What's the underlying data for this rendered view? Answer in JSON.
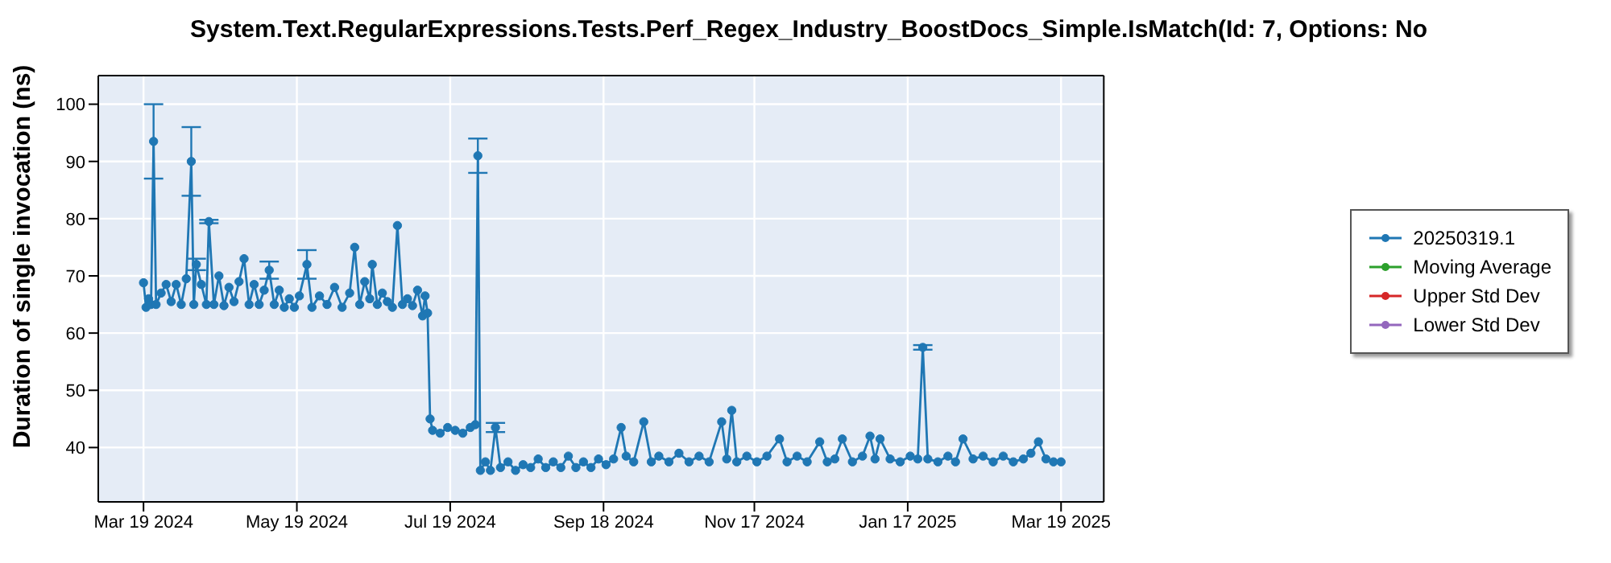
{
  "chart_data": {
    "type": "line",
    "title": "System.Text.RegularExpressions.Tests.Perf_Regex_Industry_BoostDocs_Simple.IsMatch(Id: 7, Options: No",
    "ylabel": "Duration of single invocation (ns)",
    "xlim": [
      "2024-03-01",
      "2025-04-05"
    ],
    "xticks": [
      {
        "value": "2024-03-19",
        "label": "Mar 19 2024"
      },
      {
        "value": "2024-05-19",
        "label": "May 19 2024"
      },
      {
        "value": "2024-07-19",
        "label": "Jul 19 2024"
      },
      {
        "value": "2024-09-18",
        "label": "Sep 18 2024"
      },
      {
        "value": "2024-11-17",
        "label": "Nov 17 2024"
      },
      {
        "value": "2025-01-17",
        "label": "Jan 17 2025"
      },
      {
        "value": "2025-03-19",
        "label": "Mar 19 2025"
      }
    ],
    "ylim": [
      30.5,
      105
    ],
    "yticks": [
      40,
      50,
      60,
      70,
      80,
      90,
      100
    ],
    "grid": true,
    "legend": "right",
    "marker": "circle",
    "line_style": "solid",
    "series": [
      {
        "name": "20250319.1",
        "color": "#1f77b4",
        "x": [
          "2024-03-19",
          "2024-03-20",
          "2024-03-21",
          "2024-03-22",
          "2024-03-23",
          "2024-03-24",
          "2024-03-26",
          "2024-03-28",
          "2024-03-30",
          "2024-04-01",
          "2024-04-03",
          "2024-04-05",
          "2024-04-07",
          "2024-04-08",
          "2024-04-09",
          "2024-04-11",
          "2024-04-13",
          "2024-04-14",
          "2024-04-16",
          "2024-04-18",
          "2024-04-20",
          "2024-04-22",
          "2024-04-24",
          "2024-04-26",
          "2024-04-28",
          "2024-04-30",
          "2024-05-02",
          "2024-05-04",
          "2024-05-06",
          "2024-05-08",
          "2024-05-10",
          "2024-05-12",
          "2024-05-14",
          "2024-05-16",
          "2024-05-18",
          "2024-05-20",
          "2024-05-23",
          "2024-05-25",
          "2024-05-28",
          "2024-05-31",
          "2024-06-03",
          "2024-06-06",
          "2024-06-09",
          "2024-06-11",
          "2024-06-13",
          "2024-06-15",
          "2024-06-17",
          "2024-06-18",
          "2024-06-20",
          "2024-06-22",
          "2024-06-24",
          "2024-06-26",
          "2024-06-28",
          "2024-06-30",
          "2024-07-02",
          "2024-07-04",
          "2024-07-06",
          "2024-07-08",
          "2024-07-09",
          "2024-07-10",
          "2024-07-11",
          "2024-07-12",
          "2024-07-15",
          "2024-07-18",
          "2024-07-21",
          "2024-07-24",
          "2024-07-27",
          "2024-07-29",
          "2024-07-30",
          "2024-07-31",
          "2024-08-02",
          "2024-08-04",
          "2024-08-06",
          "2024-08-08",
          "2024-08-11",
          "2024-08-14",
          "2024-08-17",
          "2024-08-20",
          "2024-08-23",
          "2024-08-26",
          "2024-08-29",
          "2024-09-01",
          "2024-09-04",
          "2024-09-07",
          "2024-09-10",
          "2024-09-13",
          "2024-09-16",
          "2024-09-19",
          "2024-09-22",
          "2024-09-25",
          "2024-09-27",
          "2024-09-30",
          "2024-10-04",
          "2024-10-07",
          "2024-10-10",
          "2024-10-14",
          "2024-10-18",
          "2024-10-22",
          "2024-10-26",
          "2024-10-30",
          "2024-11-04",
          "2024-11-06",
          "2024-11-08",
          "2024-11-10",
          "2024-11-14",
          "2024-11-18",
          "2024-11-22",
          "2024-11-27",
          "2024-11-30",
          "2024-12-04",
          "2024-12-08",
          "2024-12-13",
          "2024-12-16",
          "2024-12-19",
          "2024-12-22",
          "2024-12-26",
          "2024-12-30",
          "2025-01-02",
          "2025-01-04",
          "2025-01-06",
          "2025-01-10",
          "2025-01-14",
          "2025-01-18",
          "2025-01-21",
          "2025-01-23",
          "2025-01-25",
          "2025-01-29",
          "2025-02-02",
          "2025-02-05",
          "2025-02-08",
          "2025-02-12",
          "2025-02-16",
          "2025-02-20",
          "2025-02-24",
          "2025-02-28",
          "2025-03-04",
          "2025-03-07",
          "2025-03-10",
          "2025-03-13",
          "2025-03-16",
          "2025-03-19"
        ],
        "values": [
          68.8,
          64.5,
          66,
          65,
          93.5,
          65,
          67,
          68.5,
          65.5,
          68.5,
          65,
          69.5,
          90,
          65,
          72,
          68.5,
          65,
          79.5,
          65,
          70,
          64.8,
          68,
          65.5,
          69,
          73,
          65,
          68.5,
          65,
          67.5,
          71,
          65,
          67.5,
          64.5,
          66,
          64.5,
          66.5,
          72,
          64.5,
          66.5,
          65,
          68,
          64.5,
          67,
          75,
          65,
          69,
          66,
          72,
          65,
          67,
          65.5,
          64.5,
          78.8,
          65,
          66,
          64.8,
          67.5,
          63,
          66.5,
          63.5,
          45,
          43,
          42.5,
          43.5,
          43,
          42.5,
          43.5,
          44,
          91,
          36,
          37.5,
          36,
          43.5,
          36.5,
          37.5,
          36,
          37,
          36.5,
          38,
          36.5,
          37.5,
          36.5,
          38.5,
          36.5,
          37.5,
          36.5,
          38,
          37,
          38,
          43.5,
          38.5,
          37.5,
          44.5,
          37.5,
          38.5,
          37.5,
          39,
          37.5,
          38.5,
          37.5,
          44.5,
          38,
          46.5,
          37.5,
          38.5,
          37.5,
          38.5,
          41.5,
          37.5,
          38.5,
          37.5,
          41,
          37.5,
          38,
          41.5,
          37.5,
          38.5,
          42,
          38,
          41.5,
          38,
          37.5,
          38.5,
          38,
          57.5,
          38,
          37.5,
          38.5,
          37.5,
          41.5,
          38,
          38.5,
          37.5,
          38.5,
          37.5,
          38,
          39,
          41,
          38,
          37.5,
          37.5
        ],
        "errors": [
          null,
          null,
          null,
          null,
          6.5,
          null,
          null,
          null,
          null,
          null,
          null,
          null,
          6,
          null,
          1,
          null,
          null,
          0.3,
          null,
          null,
          null,
          null,
          null,
          null,
          null,
          null,
          null,
          null,
          null,
          1.5,
          null,
          null,
          null,
          null,
          null,
          null,
          2.5,
          null,
          null,
          null,
          null,
          null,
          null,
          null,
          null,
          null,
          null,
          null,
          null,
          null,
          null,
          null,
          null,
          null,
          null,
          null,
          null,
          null,
          null,
          null,
          null,
          null,
          null,
          null,
          null,
          null,
          null,
          null,
          3,
          null,
          null,
          null,
          0.8,
          null,
          null,
          null,
          null,
          null,
          null,
          null,
          null,
          null,
          null,
          null,
          null,
          null,
          null,
          null,
          null,
          null,
          null,
          null,
          null,
          null,
          null,
          null,
          null,
          null,
          null,
          null,
          null,
          null,
          null,
          null,
          null,
          null,
          null,
          null,
          null,
          null,
          null,
          null,
          null,
          null,
          null,
          null,
          null,
          null,
          null,
          null,
          null,
          null,
          null,
          null,
          0.4,
          null,
          null,
          null,
          null,
          null,
          null,
          null,
          null,
          null,
          null,
          null,
          null,
          null,
          null,
          null,
          null
        ]
      },
      {
        "name": "Moving Average",
        "color": "#2ca02c"
      },
      {
        "name": "Upper Std Dev",
        "color": "#d62728"
      },
      {
        "name": "Lower Std Dev",
        "color": "#9467bd"
      }
    ]
  }
}
